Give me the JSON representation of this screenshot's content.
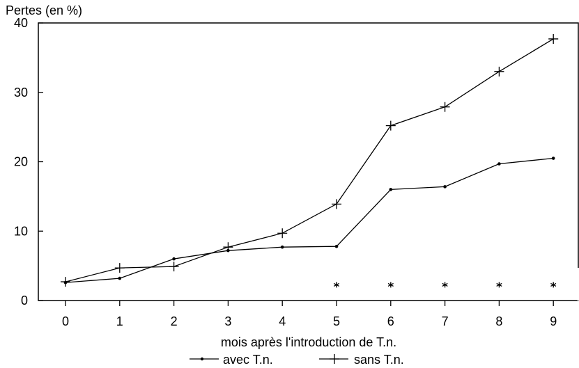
{
  "chart_data": {
    "type": "line",
    "ylabel": "Pertes (en %)",
    "xlabel": "mois après l'introduction de T.n.",
    "x": [
      0,
      1,
      2,
      3,
      4,
      5,
      6,
      7,
      8,
      9
    ],
    "xlim": [
      -0.5,
      9.5
    ],
    "ylim": [
      0,
      40
    ],
    "yticks": [
      0,
      10,
      20,
      30,
      40
    ],
    "series": [
      {
        "name": "avec T.n.",
        "marker": "dot",
        "values": [
          2.6,
          3.2,
          6.0,
          7.2,
          7.7,
          7.8,
          16.0,
          16.4,
          19.7,
          20.5
        ]
      },
      {
        "name": "sans T.n.",
        "marker": "plus",
        "values": [
          2.7,
          4.7,
          4.9,
          7.7,
          9.7,
          13.9,
          25.2,
          27.9,
          33.0,
          37.7
        ]
      }
    ],
    "significance_markers": {
      "symbol": "*",
      "x": [
        5,
        6,
        7,
        8,
        9
      ]
    },
    "legend_position": "bottom-center",
    "grid": false
  }
}
